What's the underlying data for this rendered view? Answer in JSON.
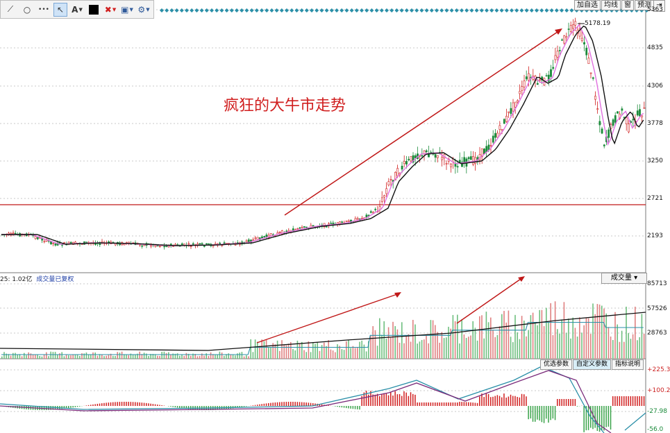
{
  "toolbar": {
    "tools": [
      {
        "name": "line-tool-icon",
        "glyph": "⟋"
      },
      {
        "name": "circle-tool-icon",
        "glyph": "○"
      },
      {
        "name": "dots-tool-icon",
        "glyph": "•••"
      },
      {
        "name": "pointer-tool-icon",
        "glyph": "↖"
      },
      {
        "name": "text-tool-icon",
        "glyph": "A"
      },
      {
        "name": "color-swatch-icon",
        "glyph": "■"
      },
      {
        "name": "delete-icon",
        "glyph": "✖"
      },
      {
        "name": "save-icon",
        "glyph": "▣"
      },
      {
        "name": "settings-icon",
        "glyph": "⚙"
      }
    ]
  },
  "right_tabs": [
    "加自选",
    "均线",
    "窗",
    "预测"
  ],
  "right_tab_arrow": "⇥",
  "annotation": "疯狂的大牛市走势",
  "price_axis": {
    "ticks": [
      "5363",
      "4835",
      "4306",
      "3778",
      "3250",
      "2721",
      "2193"
    ],
    "range": [
      1700,
      5400
    ],
    "peak_label": "5178.19",
    "horizontal_level": 2650
  },
  "volume_header": {
    "prefix": "25: 1.02亿",
    "note": "成交量已复权"
  },
  "volume_dropdown": "成交量",
  "volume_axis": {
    "ticks": [
      "85713",
      "57526",
      "28763"
    ]
  },
  "macd_tabs": [
    "优选参数",
    "自定义参数",
    "指标说明"
  ],
  "macd_axis": {
    "ticks": [
      "+225.3",
      "+100.2",
      "-27.98",
      "-56.0"
    ]
  },
  "colors": {
    "up": "#d01e1e",
    "down": "#1a8a3a",
    "ma_short": "#e070e0",
    "ma_long": "#111111",
    "volume_ma": "#2a8fa8",
    "grid": "#c9c9c9",
    "dots": "#2a8fa8"
  }
}
